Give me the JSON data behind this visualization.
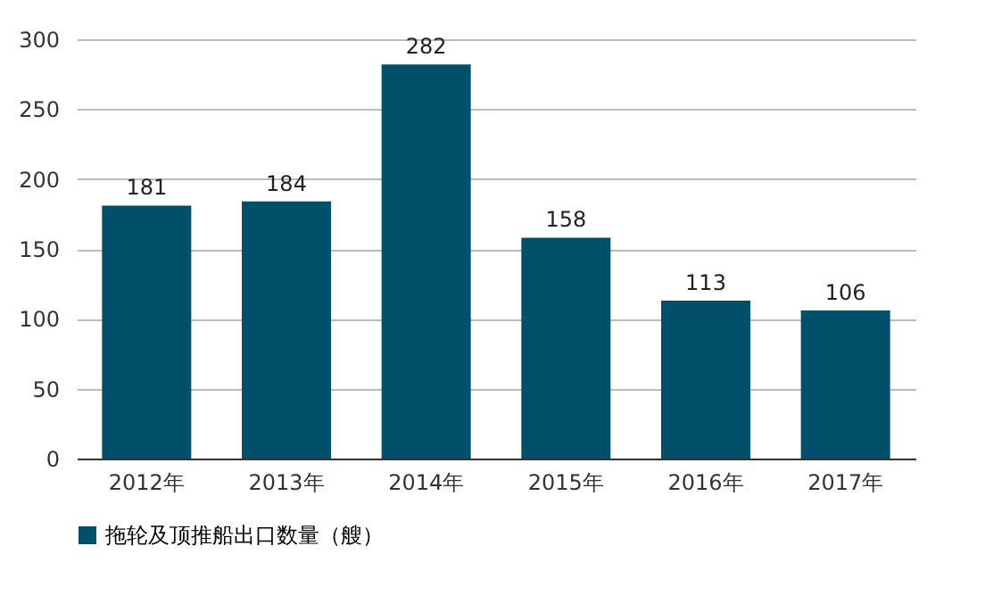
{
  "chart_data": {
    "type": "bar",
    "categories": [
      "2012年",
      "2013年",
      "2014年",
      "2015年",
      "2016年",
      "2017年"
    ],
    "series": [
      {
        "name": "拖轮及顶推船出口数量（艘）",
        "color": "#004f6b",
        "values": [
          181,
          184,
          282,
          158,
          113,
          106
        ]
      }
    ],
    "ylim": [
      0,
      300
    ],
    "yticks": [
      0,
      50,
      100,
      150,
      200,
      250,
      300
    ],
    "grid": "y",
    "legend": "bottom",
    "data_labels": true
  }
}
